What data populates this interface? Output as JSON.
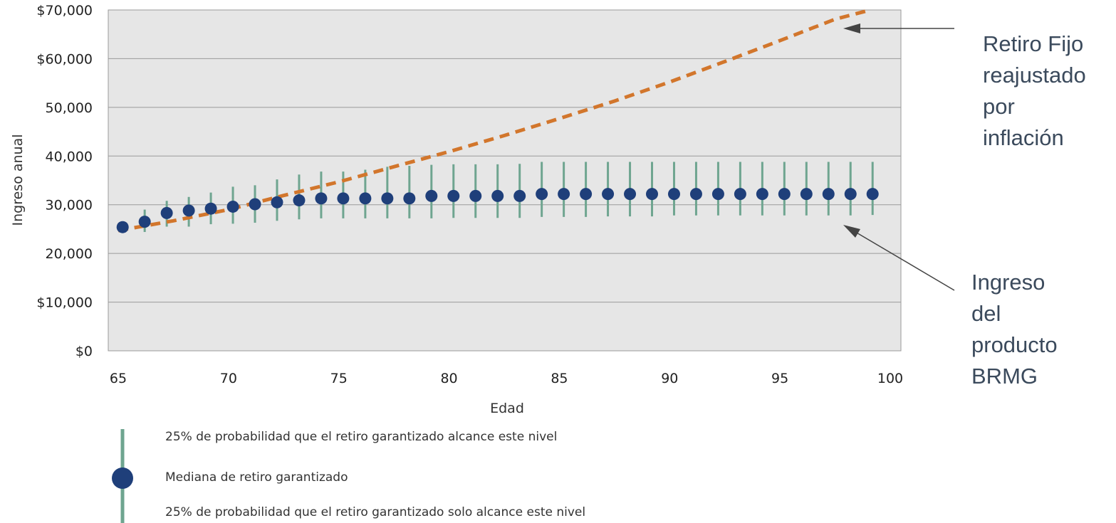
{
  "chart_data": {
    "type": "scatter",
    "xlabel": "Edad",
    "ylabel": "Ingreso anual",
    "xlim": [
      65,
      100
    ],
    "ylim": [
      0,
      70000
    ],
    "x_ticks": [
      65,
      70,
      75,
      80,
      85,
      90,
      95,
      100
    ],
    "x_tick_labels": [
      "65",
      "70",
      "75",
      "80",
      "85",
      "90",
      "95",
      "100"
    ],
    "y_ticks": [
      0,
      10000,
      20000,
      30000,
      40000,
      50000,
      60000,
      70000
    ],
    "y_tick_labels": [
      "$0",
      "$10,000",
      "20,000",
      "30,000",
      "40,000",
      "50,000",
      "$60,000",
      "$70,000"
    ],
    "grid": true,
    "colors": {
      "plot_bg": "#e6e6e6",
      "median": "#1f3f7a",
      "range": "#6fa590",
      "inflation": "#d2762c",
      "annotation": "#3b4a5c",
      "arrow": "#444444"
    },
    "product_series": {
      "ages": [
        65.2,
        66.2,
        67.2,
        68.2,
        69.2,
        70.2,
        71.2,
        72.2,
        73.2,
        74.2,
        75.2,
        76.2,
        77.2,
        78.2,
        79.2,
        80.2,
        81.2,
        82.2,
        83.2,
        84.2,
        85.2,
        86.2,
        87.2,
        88.2,
        89.2,
        90.2,
        91.2,
        92.2,
        93.2,
        94.2,
        95.2,
        96.2,
        97.2,
        98.2,
        99.2
      ],
      "median": [
        25400,
        26500,
        28300,
        28800,
        29200,
        29600,
        30100,
        30500,
        30900,
        31300,
        31300,
        31300,
        31300,
        31300,
        31800,
        31800,
        31800,
        31800,
        31800,
        32200,
        32200,
        32200,
        32200,
        32200,
        32200,
        32200,
        32200,
        32200,
        32200,
        32200,
        32200,
        32200,
        32200,
        32200,
        32200
      ],
      "upper_25": [
        26500,
        29000,
        30800,
        31600,
        32500,
        33700,
        34000,
        35200,
        36200,
        36800,
        36800,
        37200,
        37800,
        38000,
        38200,
        38300,
        38300,
        38300,
        38400,
        38800,
        38800,
        38800,
        38800,
        38800,
        38800,
        38800,
        38800,
        38800,
        38800,
        38800,
        38800,
        38800,
        38800,
        38800,
        38800
      ],
      "lower_25": [
        24800,
        24400,
        25500,
        25500,
        26000,
        26100,
        26300,
        26700,
        27000,
        27200,
        27200,
        27200,
        27200,
        27200,
        27200,
        27300,
        27300,
        27300,
        27300,
        27500,
        27500,
        27500,
        27600,
        27600,
        27600,
        27800,
        27800,
        27800,
        27800,
        27800,
        27800,
        27800,
        27800,
        27800,
        27900
      ]
    },
    "inflation_series": {
      "x": [
        65,
        67.5,
        70,
        72.5,
        75,
        77.5,
        80,
        82.5,
        85,
        87.5,
        90,
        92.5,
        95,
        97.5,
        99.1
      ],
      "y": [
        24700,
        26700,
        29000,
        31900,
        34700,
        37800,
        40900,
        44200,
        47700,
        51300,
        55200,
        59400,
        63700,
        68100,
        70000
      ]
    }
  },
  "annotations": {
    "inflation_label": [
      "Retiro Fijo",
      "reajustado",
      "por",
      "inflación"
    ],
    "product_label": [
      "Ingreso",
      "del",
      "producto",
      "BRMG"
    ]
  },
  "legend": {
    "upper": "25% de probabilidad que el retiro garantizado alcance este nivel",
    "median": "Mediana de retiro garantizado",
    "lower": "25% de probabilidad que el retiro garantizado solo alcance este nivel"
  }
}
